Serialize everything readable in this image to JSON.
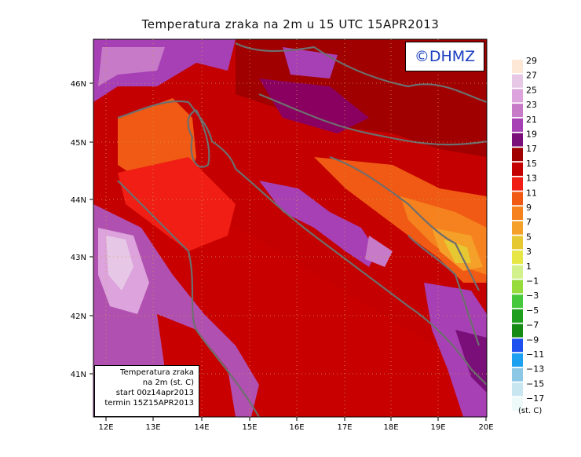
{
  "title": "Temperatura zraka na 2m u 15 UTC 15APR2013",
  "logo": "©DHMZ",
  "info": {
    "line1": "Temperatura zraka",
    "line2": "na 2m (st. C)",
    "line3": "start 00z14apr2013",
    "line4": "termin 15Z15APR2013"
  },
  "lat_labels": [
    "46N",
    "45N",
    "44N",
    "43N",
    "42N",
    "41N"
  ],
  "lon_labels": [
    "12E",
    "13E",
    "14E",
    "15E",
    "16E",
    "17E",
    "18E",
    "19E",
    "20E"
  ],
  "legend": {
    "unit": "(st. C)",
    "labels": [
      "29",
      "27",
      "25",
      "23",
      "21",
      "19",
      "17",
      "15",
      "13",
      "11",
      "9",
      "7",
      "5",
      "3",
      "1",
      "−1",
      "−3",
      "−5",
      "−7",
      "−9",
      "−11",
      "−13",
      "−15",
      "−17"
    ],
    "colors": [
      "#fde8d8",
      "#e6c8e6",
      "#dca3dc",
      "#c77ac7",
      "#a640b4",
      "#7a0f7a",
      "#a00000",
      "#c40000",
      "#f01e14",
      "#f05a14",
      "#f5821e",
      "#f5a028",
      "#e6c832",
      "#e6e646",
      "#d2f08c",
      "#96dc3c",
      "#46c83c",
      "#1ea01e",
      "#148c14",
      "#1e50f0",
      "#1ea0f0",
      "#8cc8e6",
      "#c8e6f0",
      "#eefafa"
    ]
  }
}
